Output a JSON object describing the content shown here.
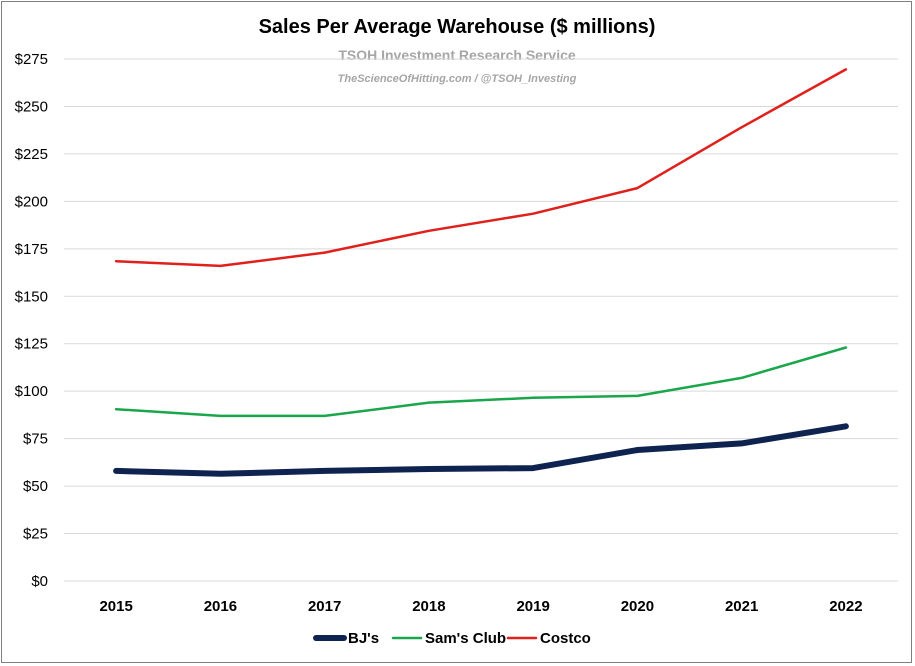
{
  "chart_data": {
    "type": "line",
    "title": "Sales Per Average Warehouse ($ millions)",
    "watermark": {
      "line1": "TSOH Investment Research Service",
      "line2": "TheScienceOfHitting.com / @TSOH_Investing"
    },
    "xlabel": "",
    "ylabel": "",
    "categories": [
      "2015",
      "2016",
      "2017",
      "2018",
      "2019",
      "2020",
      "2021",
      "2022"
    ],
    "ylim": [
      0,
      275
    ],
    "yticks": [
      "$0",
      "$25",
      "$50",
      "$75",
      "$100",
      "$125",
      "$150",
      "$175",
      "$200",
      "$225",
      "$250",
      "$275"
    ],
    "grid": true,
    "legend_position": "bottom",
    "series": [
      {
        "name": "BJ's",
        "color": "#0f2350",
        "values": [
          58,
          56.5,
          58,
          59,
          59.5,
          69,
          72.5,
          81.5
        ]
      },
      {
        "name": "Sam's Club",
        "color": "#1aa64a",
        "values": [
          90.5,
          87,
          87,
          94,
          96.5,
          97.5,
          107,
          123
        ]
      },
      {
        "name": "Costco",
        "color": "#e0201b",
        "values": [
          168.5,
          166,
          173,
          184.5,
          193.5,
          207,
          239,
          269.5
        ]
      }
    ]
  }
}
